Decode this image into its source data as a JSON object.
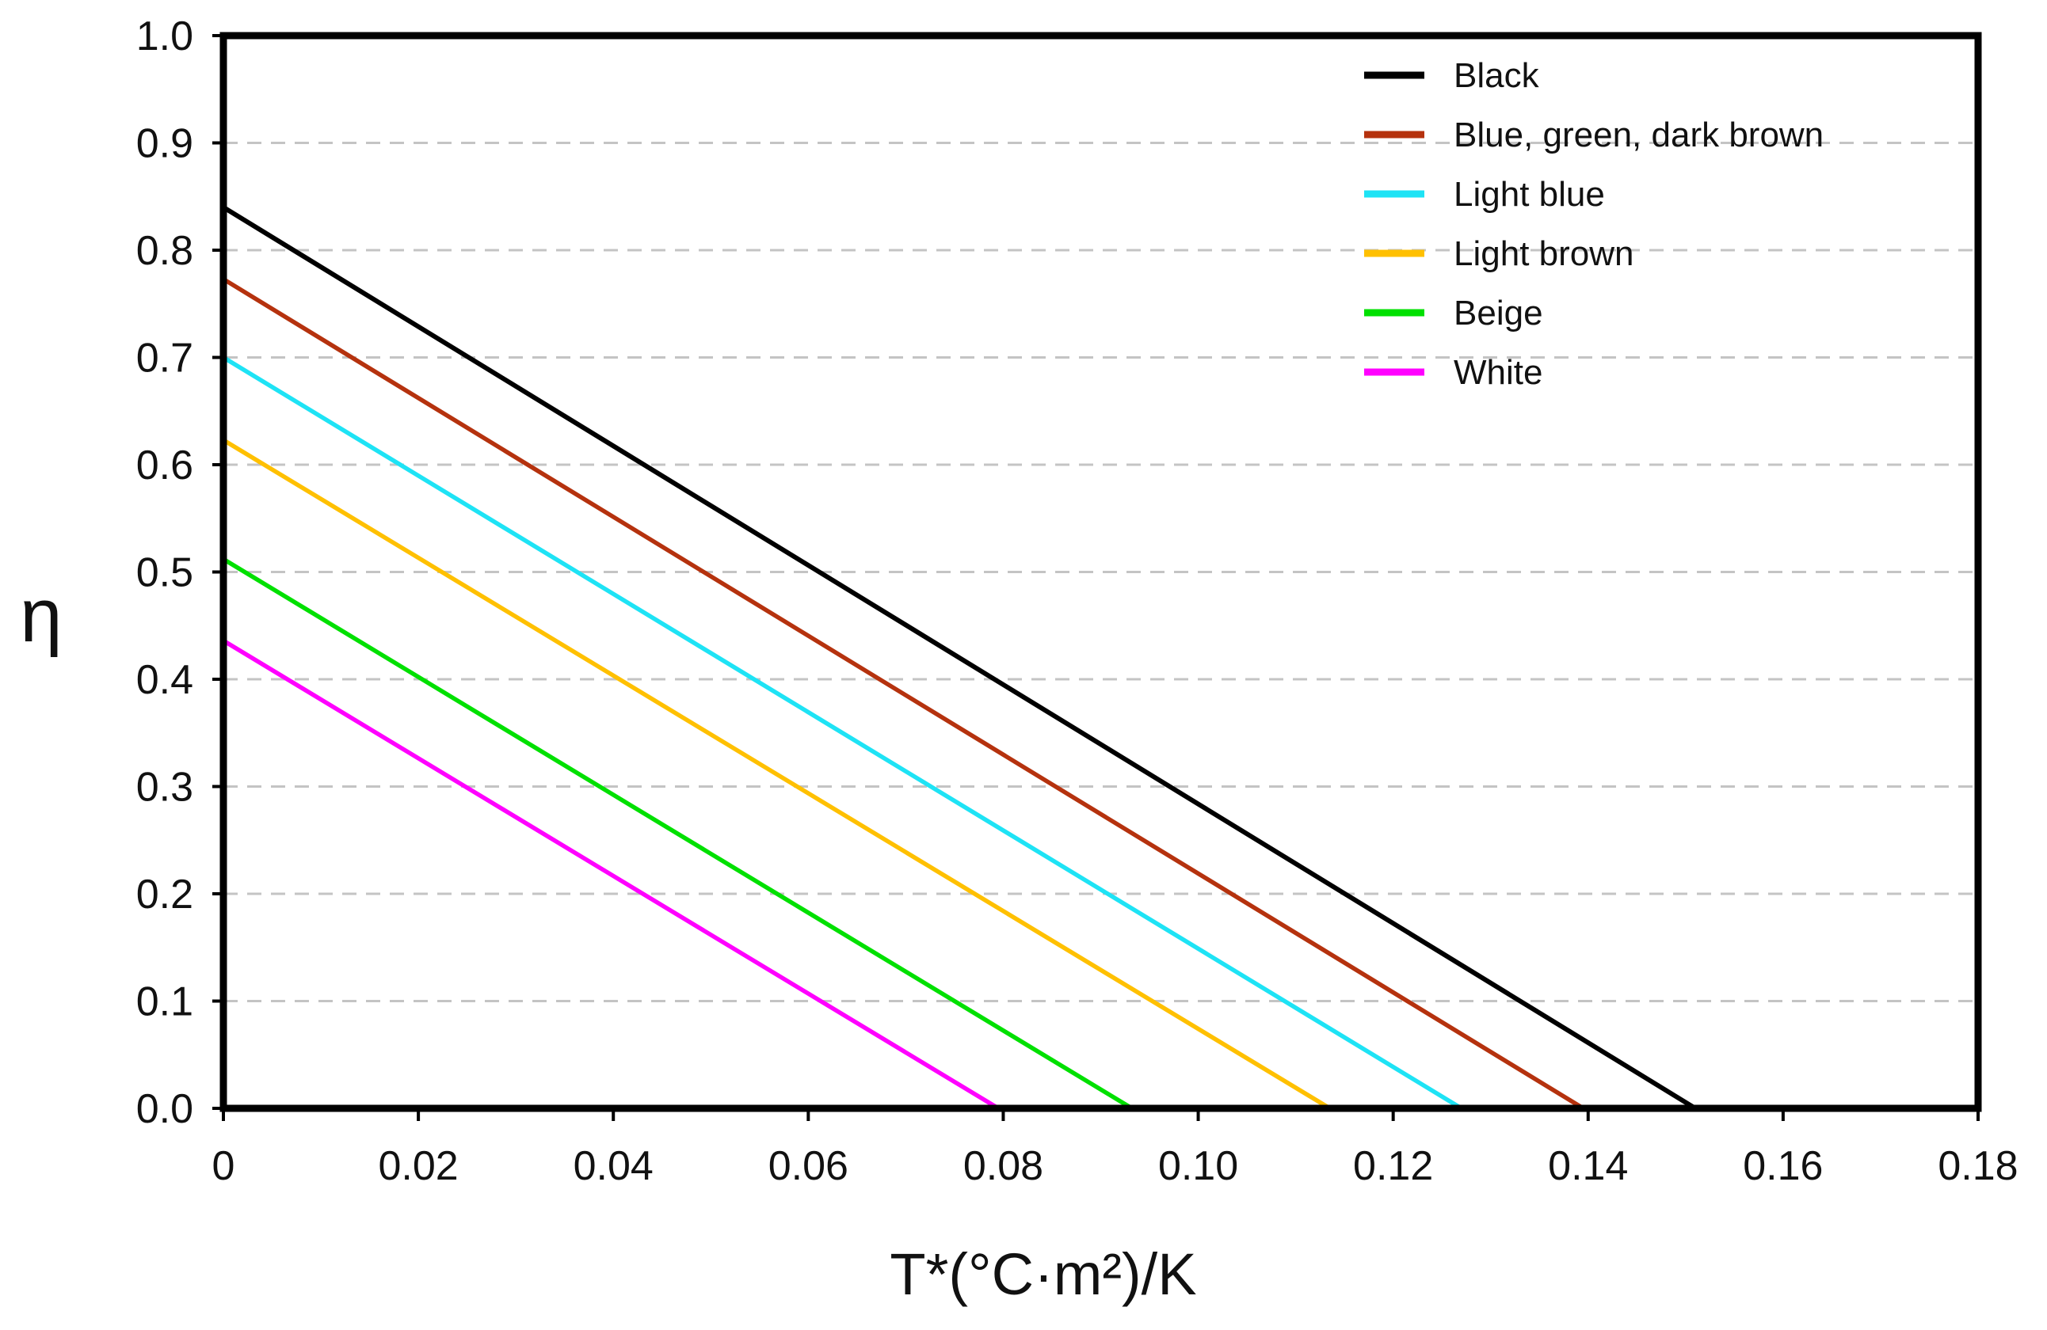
{
  "chart_data": {
    "type": "line",
    "title": "",
    "xlabel": "T*(°C·m²)/K",
    "ylabel": "η",
    "xlim": [
      0,
      0.18
    ],
    "ylim": [
      0,
      1.0
    ],
    "x_ticks": [
      "0",
      "0.02",
      "0.04",
      "0.06",
      "0.08",
      "0.10",
      "0.12",
      "0.14",
      "0.16",
      "0.18"
    ],
    "y_ticks": [
      "0.0",
      "0.1",
      "0.2",
      "0.3",
      "0.4",
      "0.5",
      "0.6",
      "0.7",
      "0.8",
      "0.9",
      "1.0"
    ],
    "grid": "horizontal-dashed",
    "legend_position": "top-right",
    "series": [
      {
        "name": "Black",
        "color": "#000000",
        "x": [
          0,
          0.151
        ],
        "y": [
          0.84,
          0.0
        ]
      },
      {
        "name": "Blue, green, dark brown",
        "color": "#b5320e",
        "x": [
          0,
          0.1395
        ],
        "y": [
          0.773,
          0.0
        ]
      },
      {
        "name": "Light blue",
        "color": "#1ee3f5",
        "x": [
          0,
          0.127
        ],
        "y": [
          0.7,
          0.0
        ]
      },
      {
        "name": "Light brown",
        "color": "#ffc000",
        "x": [
          0,
          0.1135
        ],
        "y": [
          0.623,
          0.0
        ]
      },
      {
        "name": "Beige",
        "color": "#00e000",
        "x": [
          0,
          0.0932
        ],
        "y": [
          0.512,
          0.0
        ]
      },
      {
        "name": "White",
        "color": "#ff00ff",
        "x": [
          0,
          0.0795
        ],
        "y": [
          0.436,
          0.0
        ]
      }
    ]
  }
}
